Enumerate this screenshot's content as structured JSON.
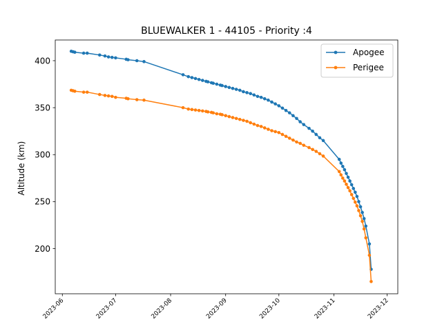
{
  "chart_data": {
    "type": "line",
    "title": "BLUEWALKER 1 - 44105 - Priority :4",
    "xlabel": "",
    "ylabel": "Altitude (km)",
    "x_type": "date",
    "xlim": [
      "2023-05-28",
      "2023-12-07"
    ],
    "ylim": [
      152,
      422
    ],
    "x_ticks": [
      "2023-06",
      "2023-07",
      "2023-08",
      "2023-09",
      "2023-10",
      "2023-11",
      "2023-12"
    ],
    "y_ticks": [
      200,
      250,
      300,
      350,
      400
    ],
    "legend_position": "top-right",
    "grid": false,
    "series": [
      {
        "name": "Apogee",
        "color": "#1f77b4",
        "points": [
          [
            "2023-06-06",
            410
          ],
          [
            "2023-06-07",
            409.5
          ],
          [
            "2023-06-08",
            409
          ],
          [
            "2023-06-13",
            408
          ],
          [
            "2023-06-15",
            408
          ],
          [
            "2023-06-22",
            406
          ],
          [
            "2023-06-25",
            405
          ],
          [
            "2023-06-27",
            404
          ],
          [
            "2023-06-29",
            403.5
          ],
          [
            "2023-07-01",
            403
          ],
          [
            "2023-07-07",
            401.5
          ],
          [
            "2023-07-08",
            401
          ],
          [
            "2023-07-13",
            400
          ],
          [
            "2023-07-17",
            399
          ],
          [
            "2023-08-08",
            385
          ],
          [
            "2023-08-11",
            383
          ],
          [
            "2023-08-13",
            382
          ],
          [
            "2023-08-15",
            381
          ],
          [
            "2023-08-17",
            380
          ],
          [
            "2023-08-19",
            379
          ],
          [
            "2023-08-21",
            378
          ],
          [
            "2023-08-22",
            377.5
          ],
          [
            "2023-08-24",
            376.5
          ],
          [
            "2023-08-25",
            376
          ],
          [
            "2023-08-27",
            375
          ],
          [
            "2023-08-29",
            374
          ],
          [
            "2023-08-30",
            373.5
          ],
          [
            "2023-09-01",
            372.5
          ],
          [
            "2023-09-03",
            371.5
          ],
          [
            "2023-09-05",
            370.5
          ],
          [
            "2023-09-07",
            369.5
          ],
          [
            "2023-09-09",
            368.5
          ],
          [
            "2023-09-11",
            367
          ],
          [
            "2023-09-13",
            366
          ],
          [
            "2023-09-15",
            365
          ],
          [
            "2023-09-17",
            363.5
          ],
          [
            "2023-09-19",
            362
          ],
          [
            "2023-09-21",
            361
          ],
          [
            "2023-09-23",
            359.5
          ],
          [
            "2023-09-25",
            358
          ],
          [
            "2023-09-27",
            356
          ],
          [
            "2023-09-29",
            354
          ],
          [
            "2023-10-01",
            352
          ],
          [
            "2023-10-03",
            349.5
          ],
          [
            "2023-10-05",
            347
          ],
          [
            "2023-10-07",
            344.5
          ],
          [
            "2023-10-09",
            341.5
          ],
          [
            "2023-10-11",
            338.5
          ],
          [
            "2023-10-13",
            335
          ],
          [
            "2023-10-15",
            332
          ],
          [
            "2023-10-18",
            328
          ],
          [
            "2023-10-20",
            325
          ],
          [
            "2023-10-22",
            321.5
          ],
          [
            "2023-10-24",
            318
          ],
          [
            "2023-10-26",
            315
          ],
          [
            "2023-11-04",
            295
          ],
          [
            "2023-11-05",
            291
          ],
          [
            "2023-11-06",
            287.5
          ],
          [
            "2023-11-07",
            284
          ],
          [
            "2023-11-08",
            280
          ],
          [
            "2023-11-09",
            276
          ],
          [
            "2023-11-10",
            272
          ],
          [
            "2023-11-11",
            268
          ],
          [
            "2023-11-12",
            264
          ],
          [
            "2023-11-13",
            260
          ],
          [
            "2023-11-14",
            255.5
          ],
          [
            "2023-11-15",
            250
          ],
          [
            "2023-11-16",
            244.5
          ],
          [
            "2023-11-17",
            238.5
          ],
          [
            "2023-11-18",
            232
          ],
          [
            "2023-11-19",
            224
          ],
          [
            "2023-11-21",
            205
          ],
          [
            "2023-11-22",
            178
          ]
        ]
      },
      {
        "name": "Perigee",
        "color": "#ff7f0e",
        "points": [
          [
            "2023-06-06",
            368.5
          ],
          [
            "2023-06-07",
            368
          ],
          [
            "2023-06-08",
            367.5
          ],
          [
            "2023-06-13",
            366.5
          ],
          [
            "2023-06-15",
            366.5
          ],
          [
            "2023-06-22",
            364
          ],
          [
            "2023-06-25",
            363
          ],
          [
            "2023-06-27",
            362.5
          ],
          [
            "2023-06-29",
            362
          ],
          [
            "2023-07-01",
            361
          ],
          [
            "2023-07-07",
            360
          ],
          [
            "2023-07-08",
            359.5
          ],
          [
            "2023-07-13",
            358.5
          ],
          [
            "2023-07-17",
            358
          ],
          [
            "2023-08-08",
            350
          ],
          [
            "2023-08-11",
            348.5
          ],
          [
            "2023-08-13",
            348
          ],
          [
            "2023-08-15",
            347.5
          ],
          [
            "2023-08-17",
            347
          ],
          [
            "2023-08-19",
            346.5
          ],
          [
            "2023-08-21",
            346
          ],
          [
            "2023-08-22",
            345.5
          ],
          [
            "2023-08-24",
            345
          ],
          [
            "2023-08-25",
            344.5
          ],
          [
            "2023-08-27",
            343.5
          ],
          [
            "2023-08-29",
            343
          ],
          [
            "2023-08-30",
            342.5
          ],
          [
            "2023-09-01",
            341.5
          ],
          [
            "2023-09-03",
            340.5
          ],
          [
            "2023-09-05",
            339.5
          ],
          [
            "2023-09-07",
            338.5
          ],
          [
            "2023-09-09",
            337.5
          ],
          [
            "2023-09-11",
            336.5
          ],
          [
            "2023-09-13",
            335.5
          ],
          [
            "2023-09-15",
            334
          ],
          [
            "2023-09-17",
            332.5
          ],
          [
            "2023-09-19",
            331
          ],
          [
            "2023-09-21",
            330
          ],
          [
            "2023-09-23",
            328.5
          ],
          [
            "2023-09-25",
            327
          ],
          [
            "2023-09-27",
            325.5
          ],
          [
            "2023-09-29",
            324.5
          ],
          [
            "2023-10-01",
            323.5
          ],
          [
            "2023-10-03",
            321.5
          ],
          [
            "2023-10-05",
            319.5
          ],
          [
            "2023-10-07",
            317.5
          ],
          [
            "2023-10-09",
            315.5
          ],
          [
            "2023-10-11",
            313.5
          ],
          [
            "2023-10-13",
            312
          ],
          [
            "2023-10-15",
            310
          ],
          [
            "2023-10-18",
            307.5
          ],
          [
            "2023-10-20",
            305.5
          ],
          [
            "2023-10-22",
            303.5
          ],
          [
            "2023-10-24",
            301
          ],
          [
            "2023-10-26",
            298.5
          ],
          [
            "2023-11-04",
            282
          ],
          [
            "2023-11-05",
            278.5
          ],
          [
            "2023-11-06",
            275
          ],
          [
            "2023-11-07",
            272
          ],
          [
            "2023-11-08",
            268.5
          ],
          [
            "2023-11-09",
            265
          ],
          [
            "2023-11-10",
            261.5
          ],
          [
            "2023-11-11",
            257.5
          ],
          [
            "2023-11-12",
            253.5
          ],
          [
            "2023-11-13",
            249.5
          ],
          [
            "2023-11-14",
            245.5
          ],
          [
            "2023-11-15",
            240.5
          ],
          [
            "2023-11-16",
            235
          ],
          [
            "2023-11-17",
            229
          ],
          [
            "2023-11-18",
            221
          ],
          [
            "2023-11-19",
            211.5
          ],
          [
            "2023-11-21",
            193
          ],
          [
            "2023-11-22",
            165
          ]
        ]
      }
    ]
  }
}
